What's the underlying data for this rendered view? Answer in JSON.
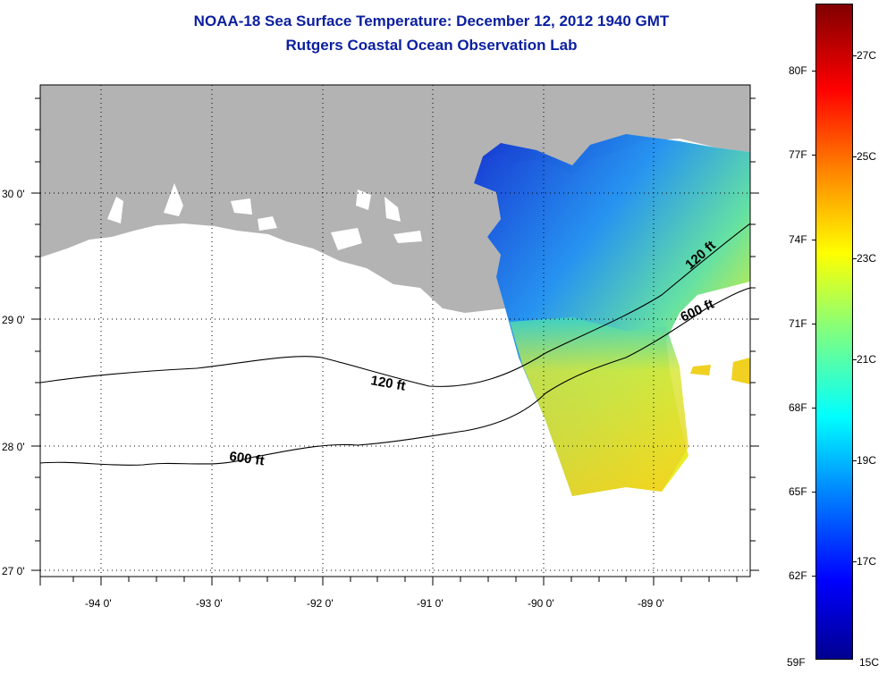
{
  "header": {
    "title": "NOAA-18 Sea Surface Temperature:  December 12, 2012 1940 GMT",
    "subtitle": "Rutgers Coastal Ocean Observation Lab"
  },
  "map": {
    "lon_labels": [
      "-94 0'",
      "-93 0'",
      "-92 0'",
      "-91 0'",
      "-90 0'",
      "-89 0'"
    ],
    "lat_labels": [
      "30 0'",
      "29 0'",
      "28 0'",
      "27 0'"
    ],
    "contour_labels": [
      "120 ft",
      "600 ft",
      "120 ft",
      "600 ft"
    ],
    "colors": {
      "land": "#b3b3b3",
      "ocean": "#ffffff",
      "grid": "#000000"
    }
  },
  "colorbar": {
    "fahrenheit_labels": [
      "80F",
      "77F",
      "74F",
      "71F",
      "68F",
      "65F",
      "62F",
      "59F"
    ],
    "celsius_labels": [
      "27C",
      "25C",
      "23C",
      "21C",
      "19C",
      "17C",
      "15C"
    ],
    "range_c": [
      15,
      28.5
    ],
    "colormap": "jet"
  }
}
